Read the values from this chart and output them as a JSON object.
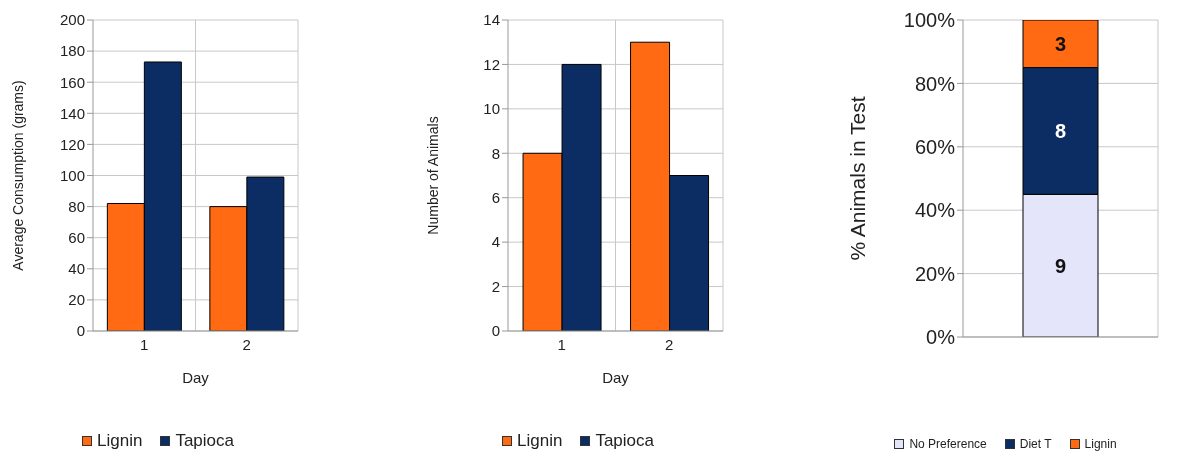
{
  "chart_data": [
    {
      "type": "bar",
      "categories": [
        "1",
        "2"
      ],
      "xlabel": "Day",
      "ylabel": "Average Consumption (grams)",
      "ylim": [
        0,
        200
      ],
      "yticks": [
        0,
        20,
        40,
        60,
        80,
        100,
        120,
        140,
        160,
        180,
        200
      ],
      "grid": true,
      "legend": "bottom",
      "series": [
        {
          "name": "Lignin",
          "color": "#ff6a13",
          "values": [
            82,
            80
          ]
        },
        {
          "name": "Tapioca",
          "color": "#0b2d63",
          "values": [
            173,
            99
          ]
        }
      ]
    },
    {
      "type": "bar",
      "categories": [
        "1",
        "2"
      ],
      "xlabel": "Day",
      "ylabel": "Number of Animals",
      "ylim": [
        0,
        14
      ],
      "yticks": [
        0,
        2,
        4,
        6,
        8,
        10,
        12,
        14
      ],
      "grid": true,
      "legend": "bottom",
      "series": [
        {
          "name": "Lignin",
          "color": "#ff6a13",
          "values": [
            8,
            13
          ]
        },
        {
          "name": "Tapioca",
          "color": "#0b2d63",
          "values": [
            12,
            7
          ]
        }
      ]
    },
    {
      "type": "bar",
      "stacked": true,
      "categories": [
        null
      ],
      "ylabel": "% Animals in Test",
      "ylim": [
        0,
        100
      ],
      "yticks": [
        {
          "value": 0,
          "label": "0%"
        },
        {
          "value": 20,
          "label": "20%"
        },
        {
          "value": 40,
          "label": "40%"
        },
        {
          "value": 60,
          "label": "60%"
        },
        {
          "value": 80,
          "label": "80%"
        },
        {
          "value": 100,
          "label": "100%"
        }
      ],
      "grid": true,
      "legend": "bottom",
      "series": [
        {
          "name": "No Preference",
          "color": "#e4e4fa",
          "values": [
            45
          ]
        },
        {
          "name": "Diet T",
          "color": "#0b2d63",
          "values": [
            40
          ]
        },
        {
          "name": "Lignin",
          "color": "#ff6a13",
          "values": [
            15
          ]
        }
      ],
      "annotations": [
        "9",
        "8",
        "3"
      ]
    }
  ]
}
